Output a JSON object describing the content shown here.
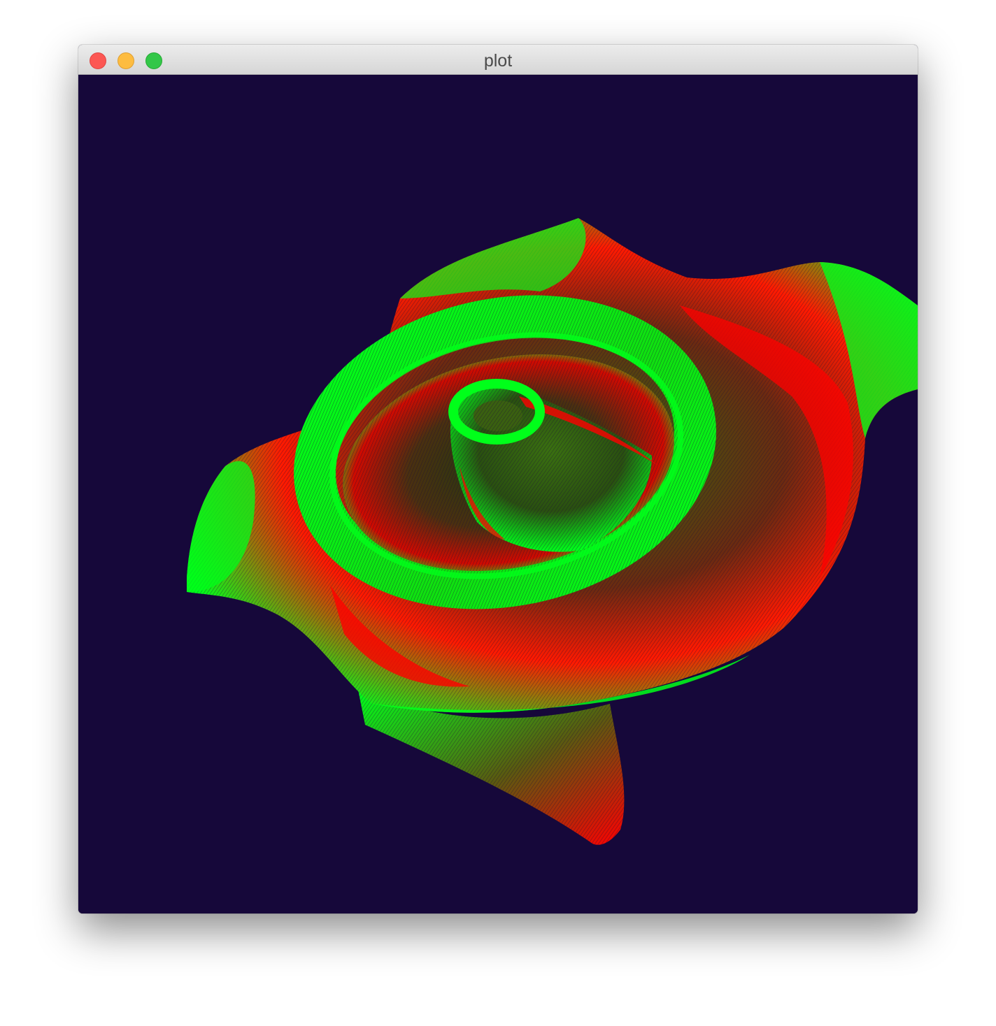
{
  "window": {
    "title": "plot"
  },
  "window_controls": [
    "close",
    "minimize",
    "zoom"
  ],
  "colors": {
    "background": "#16083a",
    "surface_primary": "#00ff1a",
    "surface_secondary": "#ff0000",
    "titlebar": "#e0e0e0"
  },
  "chart_data": {
    "type": "3d-surface",
    "render_style": "dense mesh lines",
    "color_scale": [
      "#ff0000",
      "#00ff1a"
    ]
  }
}
